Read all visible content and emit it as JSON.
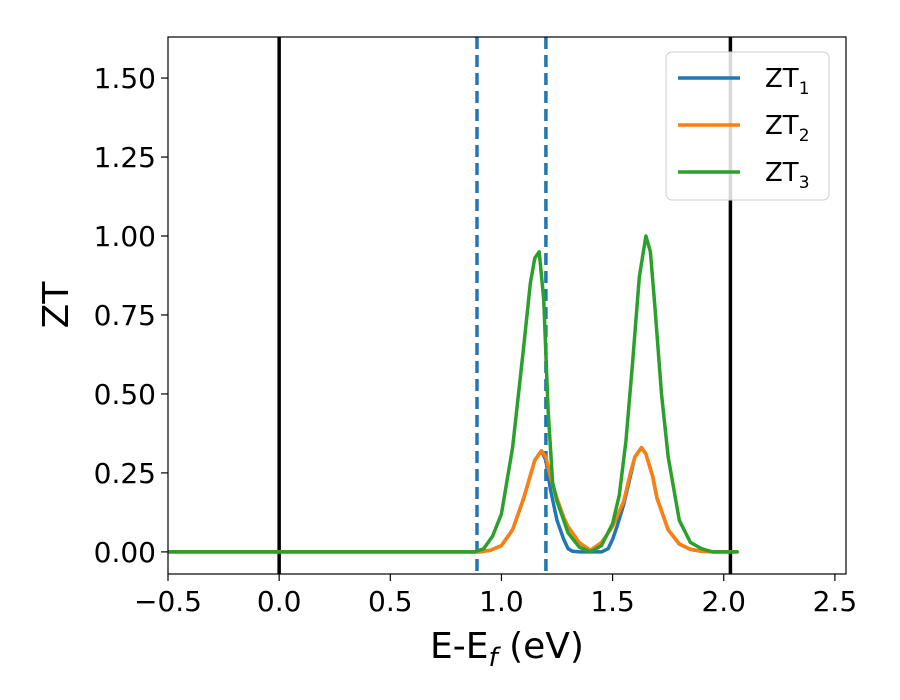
{
  "chart_data": {
    "type": "line",
    "xlabel": {
      "main": "E-E",
      "sub": "f",
      "suffix": " (eV)"
    },
    "ylabel": "ZT",
    "xlim": [
      -0.5,
      2.55
    ],
    "ylim": [
      -0.07,
      1.63
    ],
    "x_ticks": [
      -0.5,
      0.0,
      0.5,
      1.0,
      1.5,
      2.0,
      2.5
    ],
    "x_tick_labels": [
      "−0.5",
      "0.0",
      "0.5",
      "1.0",
      "1.5",
      "2.0",
      "2.5"
    ],
    "y_ticks": [
      0.0,
      0.25,
      0.5,
      0.75,
      1.0,
      1.25,
      1.5
    ],
    "y_tick_labels": [
      "0.00",
      "0.25",
      "0.50",
      "0.75",
      "1.00",
      "1.25",
      "1.50"
    ],
    "grid": false,
    "legend_position": "top-right",
    "vertical_lines": [
      {
        "x": 0.0,
        "style": "solid",
        "color": "#000000"
      },
      {
        "x": 2.03,
        "style": "solid",
        "color": "#000000"
      },
      {
        "x": 0.89,
        "style": "dashed",
        "color": "#1f77b4"
      },
      {
        "x": 1.2,
        "style": "dashed",
        "color": "#1f77b4"
      }
    ],
    "series": [
      {
        "name": "ZT",
        "sub": "1",
        "color": "#1f77b4",
        "x": [
          -0.5,
          0.8,
          0.9,
          0.95,
          1.0,
          1.05,
          1.1,
          1.15,
          1.18,
          1.2,
          1.22,
          1.25,
          1.28,
          1.3,
          1.32,
          1.35,
          1.4,
          1.45,
          1.48,
          1.5,
          1.52,
          1.55,
          1.58,
          1.6,
          1.63,
          1.65,
          1.68,
          1.7,
          1.75,
          1.8,
          1.85,
          1.9,
          1.95,
          2.0,
          2.06
        ],
        "y": [
          0.0,
          0.0,
          0.0,
          0.005,
          0.02,
          0.07,
          0.17,
          0.29,
          0.32,
          0.29,
          0.2,
          0.1,
          0.04,
          0.01,
          0.002,
          0.0,
          0.0,
          0.0,
          0.01,
          0.04,
          0.08,
          0.15,
          0.24,
          0.3,
          0.33,
          0.31,
          0.24,
          0.17,
          0.07,
          0.025,
          0.008,
          0.002,
          0.0,
          0.0,
          0.0
        ]
      },
      {
        "name": "ZT",
        "sub": "2",
        "color": "#ff7f0e",
        "x": [
          -0.5,
          0.8,
          0.9,
          0.95,
          1.0,
          1.05,
          1.1,
          1.15,
          1.18,
          1.2,
          1.22,
          1.25,
          1.28,
          1.3,
          1.35,
          1.4,
          1.45,
          1.5,
          1.55,
          1.58,
          1.6,
          1.63,
          1.65,
          1.68,
          1.7,
          1.75,
          1.8,
          1.85,
          1.9,
          1.95,
          2.0,
          2.06
        ],
        "y": [
          0.0,
          0.0,
          0.0,
          0.005,
          0.02,
          0.07,
          0.17,
          0.29,
          0.32,
          0.3,
          0.24,
          0.17,
          0.11,
          0.08,
          0.03,
          0.005,
          0.03,
          0.08,
          0.16,
          0.25,
          0.3,
          0.33,
          0.31,
          0.24,
          0.17,
          0.07,
          0.025,
          0.008,
          0.002,
          0.0,
          0.0,
          0.0
        ]
      },
      {
        "name": "ZT",
        "sub": "3",
        "color": "#2ca02c",
        "x": [
          -0.5,
          0.8,
          0.88,
          0.92,
          0.96,
          1.0,
          1.05,
          1.1,
          1.13,
          1.15,
          1.17,
          1.19,
          1.21,
          1.23,
          1.25,
          1.28,
          1.3,
          1.35,
          1.4,
          1.45,
          1.5,
          1.53,
          1.56,
          1.59,
          1.62,
          1.65,
          1.67,
          1.69,
          1.72,
          1.75,
          1.8,
          1.85,
          1.9,
          1.95,
          2.0,
          2.06
        ],
        "y": [
          0.0,
          0.0,
          0.0,
          0.01,
          0.05,
          0.12,
          0.33,
          0.65,
          0.85,
          0.93,
          0.95,
          0.8,
          0.45,
          0.22,
          0.16,
          0.1,
          0.06,
          0.015,
          0.0,
          0.02,
          0.09,
          0.18,
          0.35,
          0.6,
          0.87,
          1.0,
          0.95,
          0.78,
          0.5,
          0.3,
          0.1,
          0.03,
          0.01,
          0.0,
          0.0,
          0.0
        ]
      }
    ]
  }
}
